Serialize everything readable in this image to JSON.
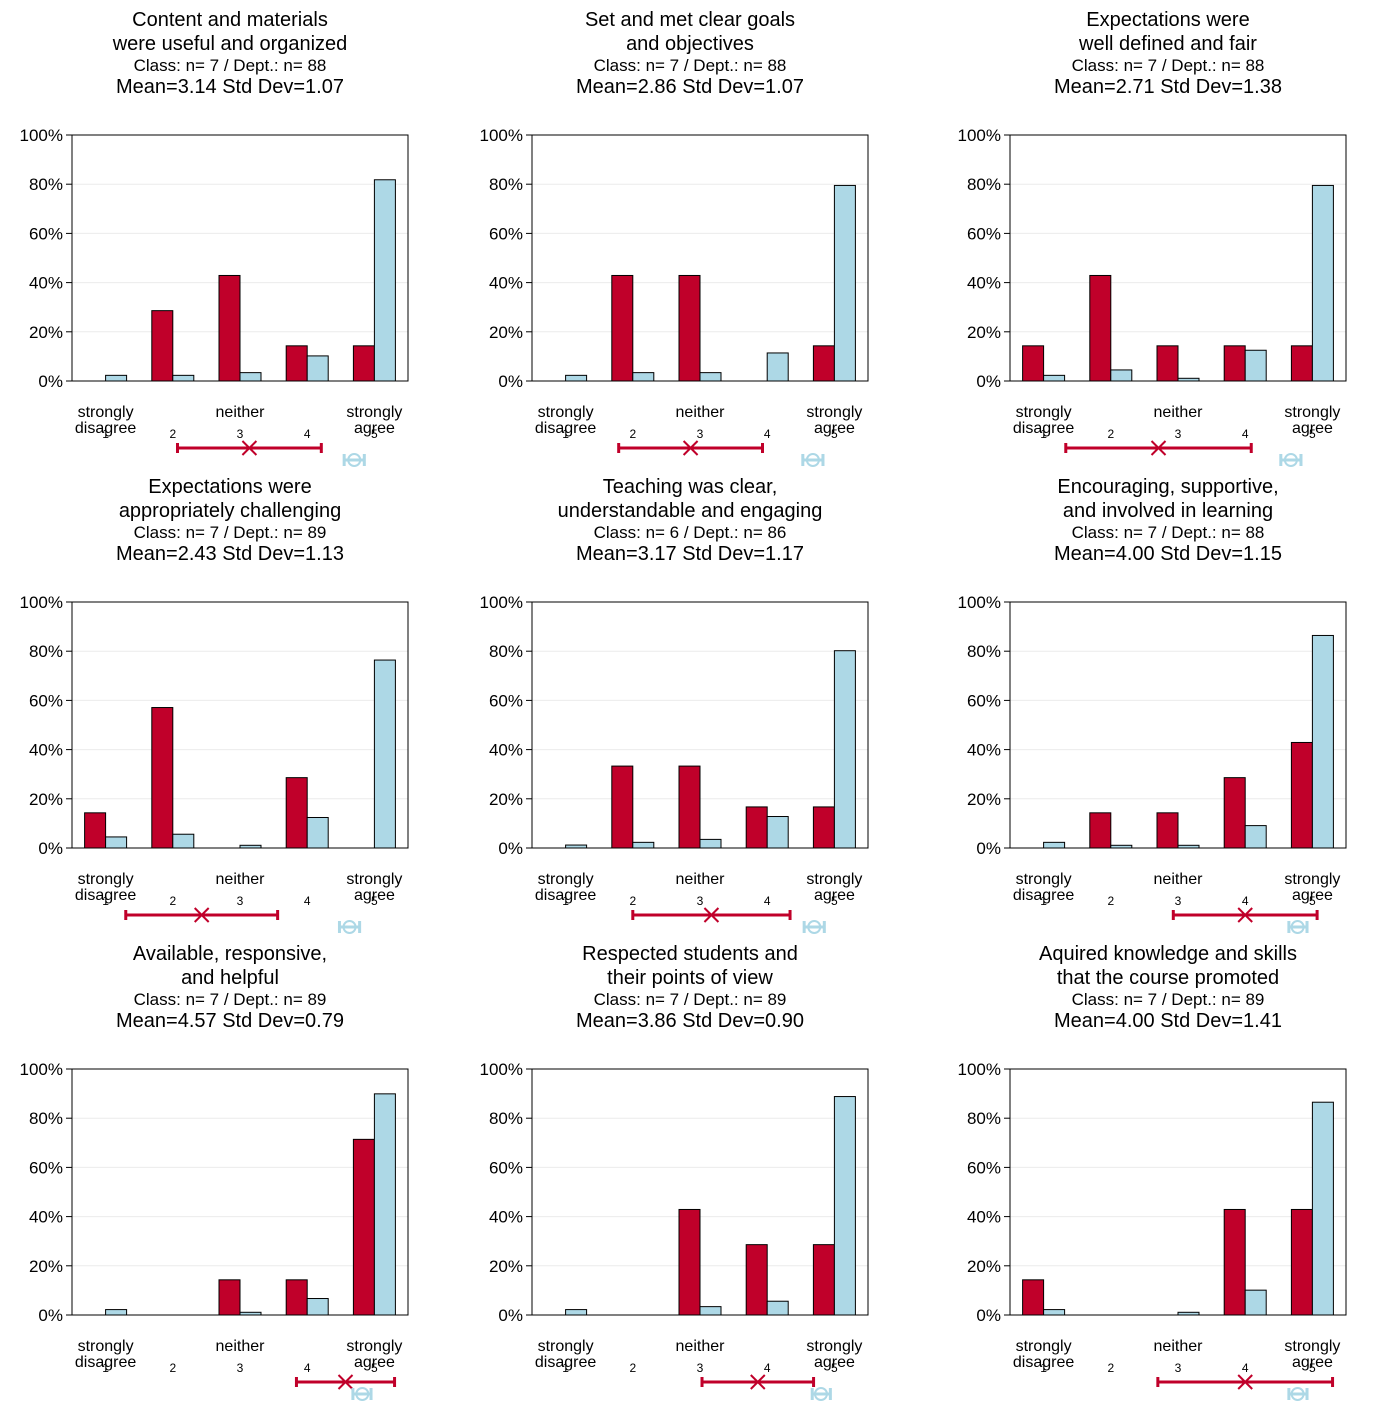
{
  "colors": {
    "class": "#c0002a",
    "dept": "#add8e6"
  },
  "chart_data": [
    {
      "type": "bar",
      "title": [
        "Content and materials",
        "were useful and organized"
      ],
      "n_line": "Class: n=   7 / Dept.: n=  88",
      "stats_line": "Mean=3.14   Std Dev=1.07",
      "categories": [
        "1",
        "2",
        "3",
        "4",
        "5"
      ],
      "y_ticks": [
        "0%",
        "20%",
        "40%",
        "60%",
        "80%",
        "100%"
      ],
      "ylim": [
        0,
        100
      ],
      "scale_labels": [
        "strongly\ndisagree",
        "neither",
        "strongly\nagree"
      ],
      "series": [
        {
          "values": [
            0,
            28.6,
            42.9,
            14.3,
            14.3
          ]
        },
        {
          "values": [
            2.3,
            2.3,
            3.4,
            10.2,
            81.8
          ]
        }
      ],
      "class_interval": [
        2.07,
        4.21
      ],
      "class_mean": 3.14,
      "dept_interval": [
        4.55,
        4.85
      ],
      "dept_mean": 4.7
    },
    {
      "type": "bar",
      "title": [
        "Set and met clear goals",
        "and objectives"
      ],
      "n_line": "Class: n=   7 / Dept.: n=  88",
      "stats_line": "Mean=2.86   Std Dev=1.07",
      "categories": [
        "1",
        "2",
        "3",
        "4",
        "5"
      ],
      "y_ticks": [
        "0%",
        "20%",
        "40%",
        "60%",
        "80%",
        "100%"
      ],
      "ylim": [
        0,
        100
      ],
      "scale_labels": [
        "strongly\ndisagree",
        "neither",
        "strongly\nagree"
      ],
      "series": [
        {
          "values": [
            0,
            42.9,
            42.9,
            0,
            14.3
          ]
        },
        {
          "values": [
            2.3,
            3.4,
            3.4,
            11.4,
            79.5
          ]
        }
      ],
      "class_interval": [
        1.79,
        3.93
      ],
      "class_mean": 2.86,
      "dept_interval": [
        4.53,
        4.83
      ],
      "dept_mean": 4.68
    },
    {
      "type": "bar",
      "title": [
        "Expectations were",
        "well defined and fair"
      ],
      "n_line": "Class: n=   7 / Dept.: n=  88",
      "stats_line": "Mean=2.71   Std Dev=1.38",
      "categories": [
        "1",
        "2",
        "3",
        "4",
        "5"
      ],
      "y_ticks": [
        "0%",
        "20%",
        "40%",
        "60%",
        "80%",
        "100%"
      ],
      "ylim": [
        0,
        100
      ],
      "scale_labels": [
        "strongly\ndisagree",
        "neither",
        "strongly\nagree"
      ],
      "series": [
        {
          "values": [
            14.3,
            42.9,
            14.3,
            14.3,
            14.3
          ]
        },
        {
          "values": [
            2.3,
            4.5,
            1.1,
            12.5,
            79.5
          ]
        }
      ],
      "class_interval": [
        1.33,
        4.09
      ],
      "class_mean": 2.71,
      "dept_interval": [
        4.53,
        4.83
      ],
      "dept_mean": 4.68
    },
    {
      "type": "bar",
      "title": [
        "Expectations were",
        "appropriately challenging"
      ],
      "n_line": "Class: n=   7 / Dept.: n=  89",
      "stats_line": "Mean=2.43   Std Dev=1.13",
      "categories": [
        "1",
        "2",
        "3",
        "4",
        "5"
      ],
      "y_ticks": [
        "0%",
        "20%",
        "40%",
        "60%",
        "80%",
        "100%"
      ],
      "ylim": [
        0,
        100
      ],
      "scale_labels": [
        "strongly\ndisagree",
        "neither",
        "strongly\nagree"
      ],
      "series": [
        {
          "values": [
            14.3,
            57.1,
            0,
            28.6,
            0
          ]
        },
        {
          "values": [
            4.5,
            5.6,
            1.1,
            12.4,
            76.4
          ]
        }
      ],
      "class_interval": [
        1.3,
        3.56
      ],
      "class_mean": 2.43,
      "dept_interval": [
        4.48,
        4.78
      ],
      "dept_mean": 4.63
    },
    {
      "type": "bar",
      "title": [
        "Teaching was clear,",
        "understandable and engaging"
      ],
      "n_line": "Class: n=   6 / Dept.: n=  86",
      "stats_line": "Mean=3.17   Std Dev=1.17",
      "categories": [
        "1",
        "2",
        "3",
        "4",
        "5"
      ],
      "y_ticks": [
        "0%",
        "20%",
        "40%",
        "60%",
        "80%",
        "100%"
      ],
      "ylim": [
        0,
        100
      ],
      "scale_labels": [
        "strongly\ndisagree",
        "neither",
        "strongly\nagree"
      ],
      "series": [
        {
          "values": [
            0,
            33.3,
            33.3,
            16.7,
            16.7
          ]
        },
        {
          "values": [
            1.2,
            2.3,
            3.5,
            12.8,
            80.2
          ]
        }
      ],
      "class_interval": [
        2.0,
        4.34
      ],
      "class_mean": 3.17,
      "dept_interval": [
        4.55,
        4.85
      ],
      "dept_mean": 4.7
    },
    {
      "type": "bar",
      "title": [
        "Encouraging, supportive,",
        "and involved in learning"
      ],
      "n_line": "Class: n=   7 / Dept.: n=  88",
      "stats_line": "Mean=4.00   Std Dev=1.15",
      "categories": [
        "1",
        "2",
        "3",
        "4",
        "5"
      ],
      "y_ticks": [
        "0%",
        "20%",
        "40%",
        "60%",
        "80%",
        "100%"
      ],
      "ylim": [
        0,
        100
      ],
      "scale_labels": [
        "strongly\ndisagree",
        "neither",
        "strongly\nagree"
      ],
      "series": [
        {
          "values": [
            0,
            14.3,
            14.3,
            28.6,
            42.9
          ]
        },
        {
          "values": [
            2.3,
            1.1,
            1.1,
            9.1,
            86.4
          ]
        }
      ],
      "class_interval": [
        2.93,
        5.07
      ],
      "class_mean": 4.0,
      "dept_interval": [
        4.65,
        4.92
      ],
      "dept_mean": 4.78
    },
    {
      "type": "bar",
      "title": [
        "Available, responsive,",
        "and helpful"
      ],
      "n_line": "Class: n=   7 / Dept.: n=  89",
      "stats_line": "Mean=4.57   Std Dev=0.79",
      "categories": [
        "1",
        "2",
        "3",
        "4",
        "5"
      ],
      "y_ticks": [
        "0%",
        "20%",
        "40%",
        "60%",
        "80%",
        "100%"
      ],
      "ylim": [
        0,
        100
      ],
      "scale_labels": [
        "strongly\ndisagree",
        "neither",
        "strongly\nagree"
      ],
      "series": [
        {
          "values": [
            0,
            0,
            14.3,
            14.3,
            71.4
          ]
        },
        {
          "values": [
            2.2,
            0,
            1.1,
            6.7,
            89.9
          ]
        }
      ],
      "class_interval": [
        3.84,
        5.3
      ],
      "class_mean": 4.57,
      "dept_interval": [
        4.68,
        4.95
      ],
      "dept_mean": 4.82
    },
    {
      "type": "bar",
      "title": [
        "Respected students and",
        "their points of view"
      ],
      "n_line": "Class: n=   7 / Dept.: n=  89",
      "stats_line": "Mean=3.86   Std Dev=0.90",
      "categories": [
        "1",
        "2",
        "3",
        "4",
        "5"
      ],
      "y_ticks": [
        "0%",
        "20%",
        "40%",
        "60%",
        "80%",
        "100%"
      ],
      "ylim": [
        0,
        100
      ],
      "scale_labels": [
        "strongly\ndisagree",
        "neither",
        "strongly\nagree"
      ],
      "series": [
        {
          "values": [
            0,
            0,
            42.9,
            28.6,
            28.6
          ]
        },
        {
          "values": [
            2.2,
            0,
            3.4,
            5.6,
            88.8
          ]
        }
      ],
      "class_interval": [
        3.03,
        4.69
      ],
      "class_mean": 3.86,
      "dept_interval": [
        4.67,
        4.94
      ],
      "dept_mean": 4.8
    },
    {
      "type": "bar",
      "title": [
        "Aquired knowledge and skills",
        "that the course promoted"
      ],
      "n_line": "Class: n=   7 / Dept.: n=  89",
      "stats_line": "Mean=4.00   Std Dev=1.41",
      "categories": [
        "1",
        "2",
        "3",
        "4",
        "5"
      ],
      "y_ticks": [
        "0%",
        "20%",
        "40%",
        "60%",
        "80%",
        "100%"
      ],
      "ylim": [
        0,
        100
      ],
      "scale_labels": [
        "strongly\ndisagree",
        "neither",
        "strongly\nagree"
      ],
      "series": [
        {
          "values": [
            14.3,
            0,
            0,
            42.9,
            42.9
          ]
        },
        {
          "values": [
            2.2,
            0,
            1.1,
            10.1,
            86.5
          ]
        }
      ],
      "class_interval": [
        2.7,
        5.3
      ],
      "class_mean": 4.0,
      "dept_interval": [
        4.65,
        4.92
      ],
      "dept_mean": 4.78
    }
  ]
}
